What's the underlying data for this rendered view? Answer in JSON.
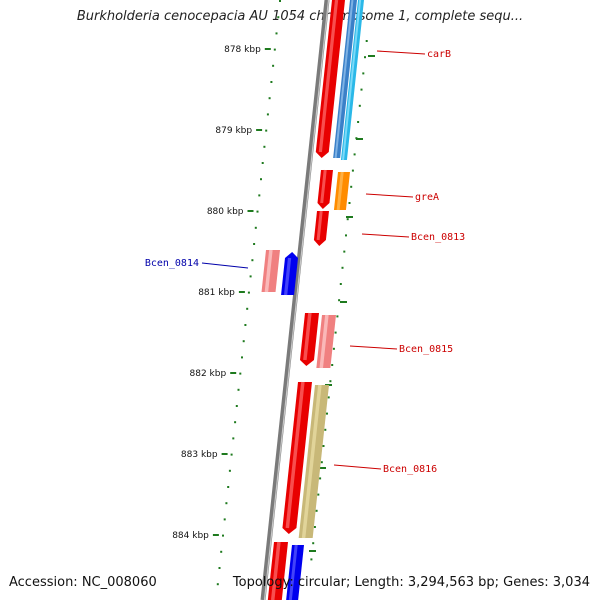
{
  "title": "Burkholderia cenocepacia AU 1054 chromosome 1, complete sequ...",
  "accession": "Accession: NC_008060",
  "summary": "Topology: circular; Length: 3,294,563 bp; Genes: 3,034",
  "colors": {
    "backbone": "#808080",
    "tick": "#1e7a1e",
    "label_forward": "#cc0000",
    "label_reverse": "#0000aa"
  },
  "ticks": [
    {
      "label": "878 kbp"
    },
    {
      "label": "879 kbp"
    },
    {
      "label": "880 kbp"
    },
    {
      "label": "881 kbp"
    },
    {
      "label": "882 kbp"
    },
    {
      "label": "883 kbp"
    },
    {
      "label": "884 kbp"
    }
  ],
  "genes": [
    {
      "label": "carB",
      "strand": "forward"
    },
    {
      "label": "greA",
      "strand": "forward"
    },
    {
      "label": "Bcen_0813",
      "strand": "forward"
    },
    {
      "label": "Bcen_0814",
      "strand": "reverse"
    },
    {
      "label": "Bcen_0815",
      "strand": "forward"
    },
    {
      "label": "Bcen_0816",
      "strand": "forward"
    }
  ]
}
